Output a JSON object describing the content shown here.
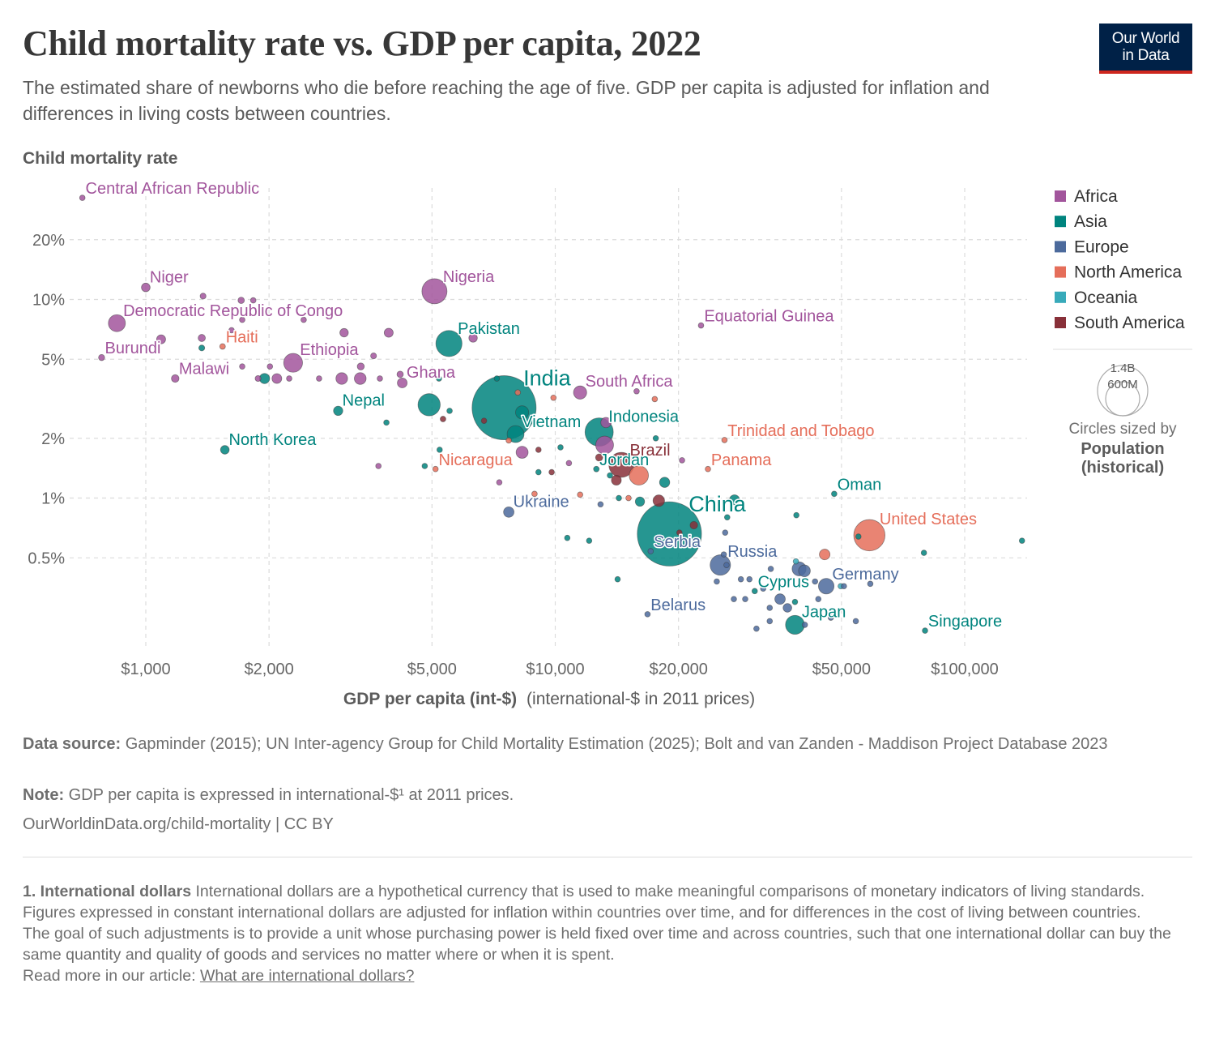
{
  "title": "Child mortality rate vs. GDP per capita, 2022",
  "subtitle": "The estimated share of newborns who die before reaching the age of five. GDP per capita is adjusted for inflation and differences in living costs between countries.",
  "logo": {
    "line1": "Our World",
    "line2": "in Data"
  },
  "colors": {
    "Africa": "#a2559c",
    "Asia": "#00847e",
    "Europe": "#4c6a9c",
    "North America": "#e56e5a",
    "Oceania": "#38aaba",
    "South America": "#883039"
  },
  "size_legend": {
    "big": "1.4B",
    "small": "600M",
    "caption": "Circles sized by",
    "var_line1": "Population",
    "var_line2": "(historical)"
  },
  "footer": {
    "source_label": "Data source:",
    "source_text": "Gapminder (2015); UN Inter-agency Group for Child Mortality Estimation (2025); Bolt and van Zanden - Maddison Project Database 2023",
    "note_label": "Note:",
    "note_text": "GDP per capita is expressed in international-$¹ at 2011 prices.",
    "url": "OurWorldinData.org/child-mortality | CC BY"
  },
  "footnote": {
    "heading": "1. International dollars",
    "p1": "International dollars are a hypothetical currency that is used to make meaningful comparisons of monetary indicators of living standards.",
    "p2": "Figures expressed in constant international dollars are adjusted for inflation within countries over time, and for differences in the cost of living between countries.",
    "p3": "The goal of such adjustments is to provide a unit whose purchasing power is held fixed over time and across countries, such that one international dollar can buy the same quantity and quality of goods and services no matter where or when it is spent.",
    "read_more": "Read more in our article:",
    "link": "What are international dollars?"
  },
  "chart_data": {
    "type": "scatter",
    "title": "Child mortality rate vs. GDP per capita, 2022",
    "xlabel_bold": "GDP per capita (int-$)",
    "xlabel_rest": "(international-$ in 2011 prices)",
    "ylabel": "Child mortality rate",
    "x_scale": "log",
    "y_scale": "log",
    "xlim": [
      640,
      142000
    ],
    "ylim": [
      0.175,
      40
    ],
    "x_ticks": [
      {
        "value": 1000,
        "label": "$1,000"
      },
      {
        "value": 2000,
        "label": "$2,000"
      },
      {
        "value": 5000,
        "label": "$5,000"
      },
      {
        "value": 10000,
        "label": "$10,000"
      },
      {
        "value": 20000,
        "label": "$20,000"
      },
      {
        "value": 50000,
        "label": "$50,000"
      },
      {
        "value": 100000,
        "label": "$100,000"
      }
    ],
    "y_ticks": [
      {
        "value": 0.5,
        "label": "0.5%"
      },
      {
        "value": 1,
        "label": "1%"
      },
      {
        "value": 2,
        "label": "2%"
      },
      {
        "value": 5,
        "label": "5%"
      },
      {
        "value": 10,
        "label": "10%"
      },
      {
        "value": 20,
        "label": "20%"
      }
    ],
    "legend": [
      "Africa",
      "Asia",
      "Europe",
      "North America",
      "Oceania",
      "South America"
    ],
    "points": [
      {
        "name": "Central African Republic",
        "region": "Africa",
        "x": 700,
        "y": 32.5,
        "pop": 5
      },
      {
        "name": "Niger",
        "region": "Africa",
        "x": 1000,
        "y": 11.5,
        "pop": 26
      },
      {
        "name": "Democratic Republic of Congo",
        "region": "Africa",
        "x": 850,
        "y": 7.6,
        "pop": 100
      },
      {
        "name": "Burundi",
        "region": "Africa",
        "x": 780,
        "y": 5.1,
        "pop": 13
      },
      {
        "name": "Malawi",
        "region": "Africa",
        "x": 1180,
        "y": 4.0,
        "pop": 20
      },
      {
        "name": "Ethiopia",
        "region": "Africa",
        "x": 2290,
        "y": 4.8,
        "pop": 123
      },
      {
        "name": "Ghana",
        "region": "Africa",
        "x": 4230,
        "y": 3.8,
        "pop": 33
      },
      {
        "name": "Nigeria",
        "region": "Africa",
        "x": 5070,
        "y": 11.0,
        "pop": 218
      },
      {
        "name": "South Africa",
        "region": "Africa",
        "x": 11500,
        "y": 3.4,
        "pop": 60
      },
      {
        "name": "Equatorial Guinea",
        "region": "Africa",
        "x": 22700,
        "y": 7.4,
        "pop": 2
      },
      {
        "name": "Haiti",
        "region": "North America",
        "x": 1540,
        "y": 5.8,
        "pop": 11
      },
      {
        "name": "Pakistan",
        "region": "Asia",
        "x": 5500,
        "y": 6.0,
        "pop": 236
      },
      {
        "name": "Nepal",
        "region": "Asia",
        "x": 2950,
        "y": 2.75,
        "pop": 30
      },
      {
        "name": "North Korea",
        "region": "Asia",
        "x": 1560,
        "y": 1.75,
        "pop": 26
      },
      {
        "name": "India",
        "region": "Asia",
        "x": 7500,
        "y": 2.85,
        "pop": 1417
      },
      {
        "name": "Vietnam",
        "region": "Asia",
        "x": 8000,
        "y": 2.1,
        "pop": 99
      },
      {
        "name": "Indonesia",
        "region": "Asia",
        "x": 12800,
        "y": 2.15,
        "pop": 276
      },
      {
        "name": "Jordan",
        "region": "Asia",
        "x": 12600,
        "y": 1.4,
        "pop": 11
      },
      {
        "name": "Nicaragua",
        "region": "North America",
        "x": 5100,
        "y": 1.4,
        "pop": 7
      },
      {
        "name": "Brazil",
        "region": "South America",
        "x": 14500,
        "y": 1.47,
        "pop": 215
      },
      {
        "name": "Panama",
        "region": "North America",
        "x": 23600,
        "y": 1.4,
        "pop": 4
      },
      {
        "name": "Trinidad and Tobago",
        "region": "North America",
        "x": 25900,
        "y": 1.96,
        "pop": 2
      },
      {
        "name": "Ukraine",
        "region": "Europe",
        "x": 7700,
        "y": 0.85,
        "pop": 38
      },
      {
        "name": "China",
        "region": "Asia",
        "x": 19000,
        "y": 0.66,
        "pop": 1425
      },
      {
        "name": "Serbia",
        "region": "Europe",
        "x": 17100,
        "y": 0.54,
        "pop": 7
      },
      {
        "name": "Russia",
        "region": "Europe",
        "x": 25300,
        "y": 0.46,
        "pop": 144
      },
      {
        "name": "Oman",
        "region": "Asia",
        "x": 48000,
        "y": 1.05,
        "pop": 5
      },
      {
        "name": "United States",
        "region": "North America",
        "x": 58500,
        "y": 0.65,
        "pop": 338
      },
      {
        "name": "Germany",
        "region": "Europe",
        "x": 45900,
        "y": 0.36,
        "pop": 84
      },
      {
        "name": "Cyprus",
        "region": "Asia",
        "x": 30700,
        "y": 0.34,
        "pop": 1.3
      },
      {
        "name": "Belarus",
        "region": "Europe",
        "x": 16800,
        "y": 0.26,
        "pop": 9
      },
      {
        "name": "Japan",
        "region": "Asia",
        "x": 38500,
        "y": 0.23,
        "pop": 124
      },
      {
        "name": "Singapore",
        "region": "Asia",
        "x": 80000,
        "y": 0.215,
        "pop": 6
      },
      {
        "name": "",
        "region": "Africa",
        "x": 1370,
        "y": 6.4,
        "pop": 18
      },
      {
        "name": "",
        "region": "Africa",
        "x": 1090,
        "y": 6.3,
        "pop": 28
      },
      {
        "name": "",
        "region": "Africa",
        "x": 1380,
        "y": 10.4,
        "pop": 12
      },
      {
        "name": "",
        "region": "Africa",
        "x": 1710,
        "y": 9.9,
        "pop": 14
      },
      {
        "name": "",
        "region": "Africa",
        "x": 1830,
        "y": 9.9,
        "pop": 9
      },
      {
        "name": "",
        "region": "Africa",
        "x": 1620,
        "y": 7.0,
        "pop": 6
      },
      {
        "name": "",
        "region": "Africa",
        "x": 1720,
        "y": 7.9,
        "pop": 5
      },
      {
        "name": "",
        "region": "Africa",
        "x": 2430,
        "y": 7.9,
        "pop": 7
      },
      {
        "name": "",
        "region": "Africa",
        "x": 3050,
        "y": 6.8,
        "pop": 25
      },
      {
        "name": "",
        "region": "Africa",
        "x": 3920,
        "y": 6.8,
        "pop": 28
      },
      {
        "name": "",
        "region": "Africa",
        "x": 1720,
        "y": 4.6,
        "pop": 8
      },
      {
        "name": "",
        "region": "Africa",
        "x": 2010,
        "y": 4.6,
        "pop": 10
      },
      {
        "name": "",
        "region": "Africa",
        "x": 2090,
        "y": 4.0,
        "pop": 33
      },
      {
        "name": "",
        "region": "Africa",
        "x": 1880,
        "y": 4.0,
        "pop": 12
      },
      {
        "name": "",
        "region": "Africa",
        "x": 2240,
        "y": 4.0,
        "pop": 9
      },
      {
        "name": "",
        "region": "Africa",
        "x": 2650,
        "y": 4.0,
        "pop": 7
      },
      {
        "name": "",
        "region": "Africa",
        "x": 3010,
        "y": 4.0,
        "pop": 47
      },
      {
        "name": "",
        "region": "Africa",
        "x": 3340,
        "y": 4.0,
        "pop": 48
      },
      {
        "name": "",
        "region": "Africa",
        "x": 3350,
        "y": 4.6,
        "pop": 17
      },
      {
        "name": "",
        "region": "Africa",
        "x": 3600,
        "y": 5.2,
        "pop": 12
      },
      {
        "name": "",
        "region": "Africa",
        "x": 3730,
        "y": 4.0,
        "pop": 10
      },
      {
        "name": "",
        "region": "Africa",
        "x": 4180,
        "y": 4.2,
        "pop": 14
      },
      {
        "name": "",
        "region": "Africa",
        "x": 3700,
        "y": 1.45,
        "pop": 6
      },
      {
        "name": "",
        "region": "Africa",
        "x": 6300,
        "y": 6.4,
        "pop": 25
      },
      {
        "name": "",
        "region": "Africa",
        "x": 7300,
        "y": 1.2,
        "pop": 8
      },
      {
        "name": "",
        "region": "Africa",
        "x": 8300,
        "y": 1.7,
        "pop": 50
      },
      {
        "name": "",
        "region": "Africa",
        "x": 13200,
        "y": 1.85,
        "pop": 110
      },
      {
        "name": "",
        "region": "Africa",
        "x": 13300,
        "y": 2.4,
        "pop": 37
      },
      {
        "name": "",
        "region": "Africa",
        "x": 15800,
        "y": 3.45,
        "pop": 5
      },
      {
        "name": "",
        "region": "Africa",
        "x": 20400,
        "y": 1.55,
        "pop": 6
      },
      {
        "name": "",
        "region": "Africa",
        "x": 10800,
        "y": 1.5,
        "pop": 5
      },
      {
        "name": "",
        "region": "Asia",
        "x": 1370,
        "y": 5.7,
        "pop": 12
      },
      {
        "name": "",
        "region": "Asia",
        "x": 1950,
        "y": 4.0,
        "pop": 36
      },
      {
        "name": "",
        "region": "Asia",
        "x": 3870,
        "y": 2.4,
        "pop": 7
      },
      {
        "name": "",
        "region": "Asia",
        "x": 4920,
        "y": 2.95,
        "pop": 171
      },
      {
        "name": "",
        "region": "Asia",
        "x": 5200,
        "y": 4.0,
        "pop": 8
      },
      {
        "name": "",
        "region": "Asia",
        "x": 5520,
        "y": 2.75,
        "pop": 7
      },
      {
        "name": "",
        "region": "Asia",
        "x": 7200,
        "y": 4.0,
        "pop": 7
      },
      {
        "name": "",
        "region": "Asia",
        "x": 8300,
        "y": 2.7,
        "pop": 60
      },
      {
        "name": "",
        "region": "Asia",
        "x": 4800,
        "y": 1.45,
        "pop": 5
      },
      {
        "name": "",
        "region": "Asia",
        "x": 5220,
        "y": 1.75,
        "pop": 5
      },
      {
        "name": "",
        "region": "Asia",
        "x": 10300,
        "y": 1.8,
        "pop": 7
      },
      {
        "name": "",
        "region": "Asia",
        "x": 9100,
        "y": 1.35,
        "pop": 7
      },
      {
        "name": "",
        "region": "Asia",
        "x": 13600,
        "y": 1.3,
        "pop": 6
      },
      {
        "name": "",
        "region": "Asia",
        "x": 16100,
        "y": 0.96,
        "pop": 30
      },
      {
        "name": "",
        "region": "Asia",
        "x": 18500,
        "y": 1.2,
        "pop": 36
      },
      {
        "name": "",
        "region": "Asia",
        "x": 27400,
        "y": 0.98,
        "pop": 35
      },
      {
        "name": "",
        "region": "Asia",
        "x": 26300,
        "y": 0.8,
        "pop": 7
      },
      {
        "name": "",
        "region": "Asia",
        "x": 10700,
        "y": 0.63,
        "pop": 7
      },
      {
        "name": "",
        "region": "Asia",
        "x": 12100,
        "y": 0.61,
        "pop": 5
      },
      {
        "name": "",
        "region": "Asia",
        "x": 14300,
        "y": 1.0,
        "pop": 5
      },
      {
        "name": "",
        "region": "Asia",
        "x": 14200,
        "y": 0.39,
        "pop": 5
      },
      {
        "name": "",
        "region": "Asia",
        "x": 17600,
        "y": 2.0,
        "pop": 6
      },
      {
        "name": "",
        "region": "Asia",
        "x": 38800,
        "y": 0.82,
        "pop": 5
      },
      {
        "name": "",
        "region": "Asia",
        "x": 55000,
        "y": 0.64,
        "pop": 10
      },
      {
        "name": "",
        "region": "Asia",
        "x": 79500,
        "y": 0.53,
        "pop": 5
      },
      {
        "name": "",
        "region": "Asia",
        "x": 138000,
        "y": 0.61,
        "pop": 3
      },
      {
        "name": "",
        "region": "Asia",
        "x": 38500,
        "y": 0.3,
        "pop": 7
      },
      {
        "name": "",
        "region": "Europe",
        "x": 12900,
        "y": 0.93,
        "pop": 4
      },
      {
        "name": "",
        "region": "Europe",
        "x": 26000,
        "y": 0.67,
        "pop": 3
      },
      {
        "name": "",
        "region": "Europe",
        "x": 25800,
        "y": 0.52,
        "pop": 4
      },
      {
        "name": "",
        "region": "Europe",
        "x": 26200,
        "y": 0.46,
        "pop": 8
      },
      {
        "name": "",
        "region": "Europe",
        "x": 24800,
        "y": 0.38,
        "pop": 4
      },
      {
        "name": "",
        "region": "Europe",
        "x": 28400,
        "y": 0.39,
        "pop": 3
      },
      {
        "name": "",
        "region": "Europe",
        "x": 33600,
        "y": 0.44,
        "pop": 10
      },
      {
        "name": "",
        "region": "Europe",
        "x": 32200,
        "y": 0.35,
        "pop": 3
      },
      {
        "name": "",
        "region": "Europe",
        "x": 29800,
        "y": 0.39,
        "pop": 4
      },
      {
        "name": "",
        "region": "Europe",
        "x": 39400,
        "y": 0.44,
        "pop": 68
      },
      {
        "name": "",
        "region": "Europe",
        "x": 40600,
        "y": 0.43,
        "pop": 48
      },
      {
        "name": "",
        "region": "Europe",
        "x": 43100,
        "y": 0.38,
        "pop": 3
      },
      {
        "name": "",
        "region": "Europe",
        "x": 35400,
        "y": 0.31,
        "pop": 38
      },
      {
        "name": "",
        "region": "Europe",
        "x": 36900,
        "y": 0.28,
        "pop": 26
      },
      {
        "name": "",
        "region": "Europe",
        "x": 33400,
        "y": 0.28,
        "pop": 4
      },
      {
        "name": "",
        "region": "Europe",
        "x": 27300,
        "y": 0.31,
        "pop": 3
      },
      {
        "name": "",
        "region": "Europe",
        "x": 29100,
        "y": 0.31,
        "pop": 3
      },
      {
        "name": "",
        "region": "Europe",
        "x": 33400,
        "y": 0.24,
        "pop": 3
      },
      {
        "name": "",
        "region": "Europe",
        "x": 31000,
        "y": 0.22,
        "pop": 3
      },
      {
        "name": "",
        "region": "Europe",
        "x": 40700,
        "y": 0.23,
        "pop": 3
      },
      {
        "name": "",
        "region": "Europe",
        "x": 43900,
        "y": 0.31,
        "pop": 5
      },
      {
        "name": "",
        "region": "Europe",
        "x": 47100,
        "y": 0.25,
        "pop": 5
      },
      {
        "name": "",
        "region": "Europe",
        "x": 50700,
        "y": 0.36,
        "pop": 3
      },
      {
        "name": "",
        "region": "Europe",
        "x": 54200,
        "y": 0.24,
        "pop": 3
      },
      {
        "name": "",
        "region": "Europe",
        "x": 58800,
        "y": 0.37,
        "pop": 5
      },
      {
        "name": "",
        "region": "North America",
        "x": 7700,
        "y": 1.95,
        "pop": 4
      },
      {
        "name": "",
        "region": "North America",
        "x": 9900,
        "y": 3.2,
        "pop": 3
      },
      {
        "name": "",
        "region": "North America",
        "x": 8900,
        "y": 1.05,
        "pop": 3
      },
      {
        "name": "",
        "region": "North America",
        "x": 11500,
        "y": 1.04,
        "pop": 3
      },
      {
        "name": "",
        "region": "North America",
        "x": 15100,
        "y": 1.0,
        "pop": 4
      },
      {
        "name": "",
        "region": "North America",
        "x": 16000,
        "y": 1.3,
        "pop": 128
      },
      {
        "name": "",
        "region": "North America",
        "x": 17500,
        "y": 3.15,
        "pop": 3
      },
      {
        "name": "",
        "region": "North America",
        "x": 45500,
        "y": 0.52,
        "pop": 39
      },
      {
        "name": "",
        "region": "North America",
        "x": 8100,
        "y": 3.4,
        "pop": 4
      },
      {
        "name": "",
        "region": "Oceania",
        "x": 38700,
        "y": 0.48,
        "pop": 4
      },
      {
        "name": "",
        "region": "Oceania",
        "x": 49800,
        "y": 0.36,
        "pop": 5
      },
      {
        "name": "",
        "region": "South America",
        "x": 5320,
        "y": 2.5,
        "pop": 11
      },
      {
        "name": "",
        "region": "South America",
        "x": 6700,
        "y": 2.45,
        "pop": 7
      },
      {
        "name": "",
        "region": "South America",
        "x": 9100,
        "y": 1.75,
        "pop": 4
      },
      {
        "name": "",
        "region": "South America",
        "x": 9800,
        "y": 1.35,
        "pop": 7
      },
      {
        "name": "",
        "region": "South America",
        "x": 12800,
        "y": 1.6,
        "pop": 18
      },
      {
        "name": "",
        "region": "South America",
        "x": 14100,
        "y": 1.23,
        "pop": 34
      },
      {
        "name": "",
        "region": "South America",
        "x": 17900,
        "y": 0.97,
        "pop": 46
      },
      {
        "name": "",
        "region": "South America",
        "x": 21800,
        "y": 0.73,
        "pop": 20
      },
      {
        "name": "",
        "region": "South America",
        "x": 20100,
        "y": 0.67,
        "pop": 3
      }
    ]
  }
}
